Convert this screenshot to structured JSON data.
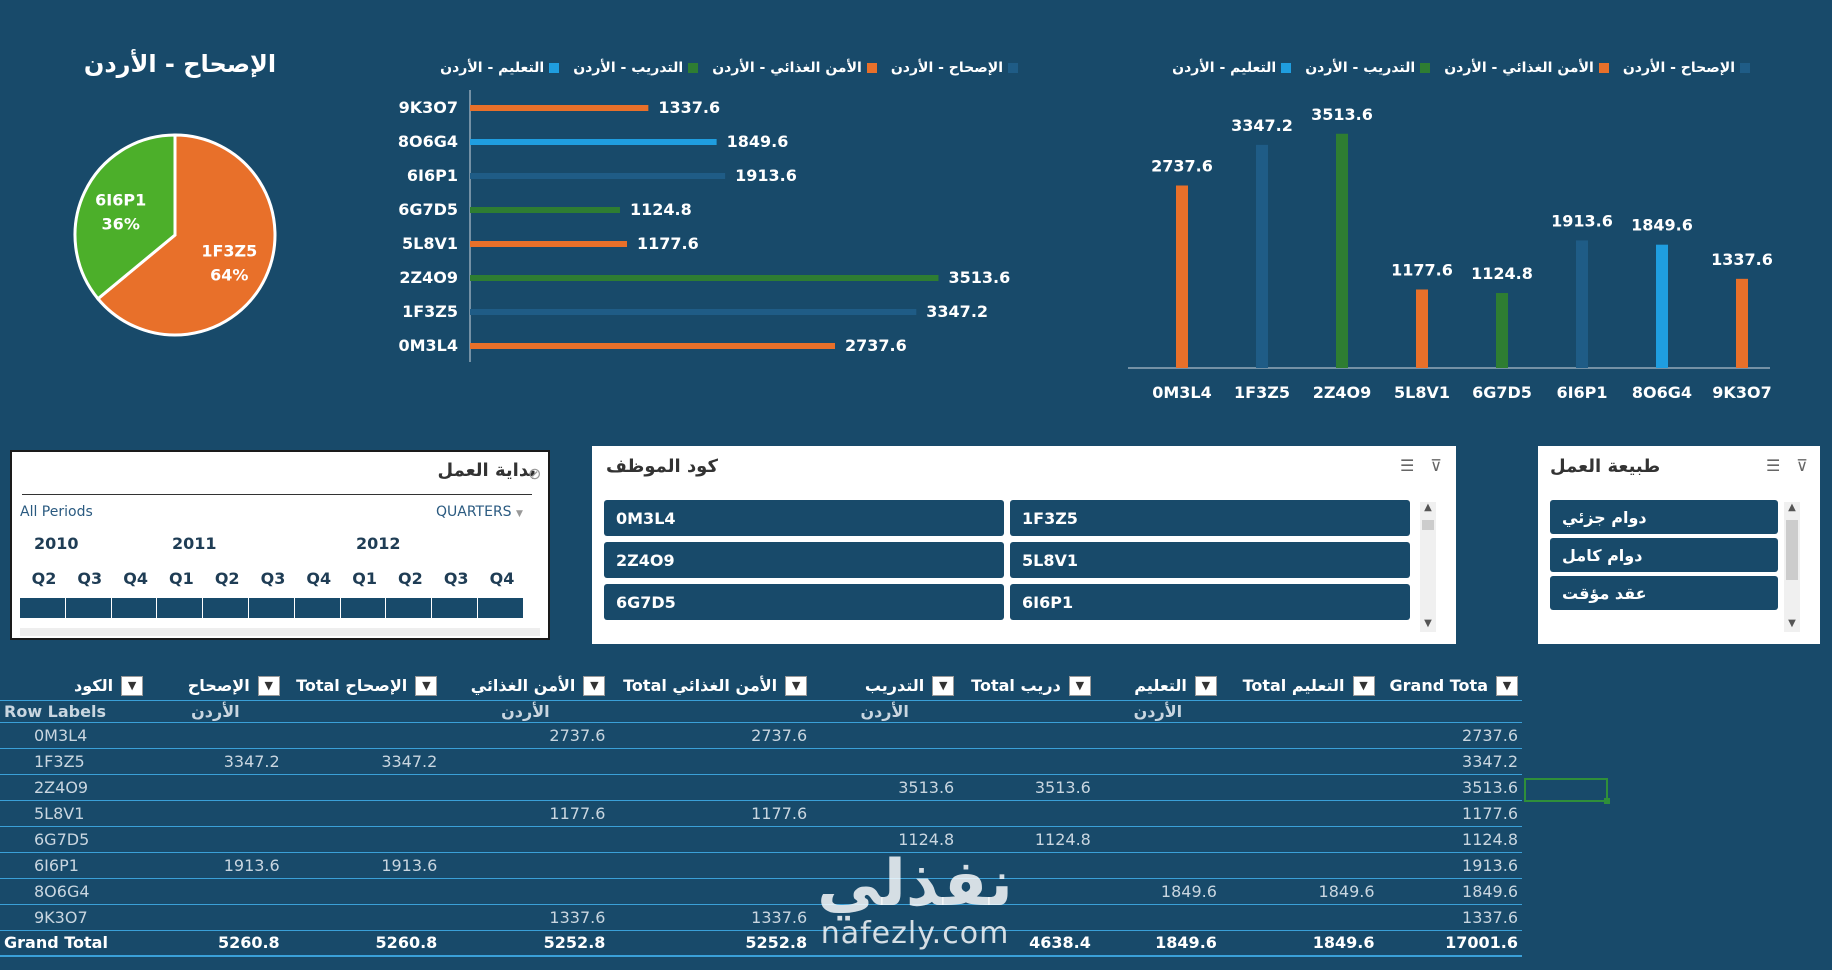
{
  "colors": {
    "bg": "#184a6a",
    "orange": "#e8702a",
    "green": "#2e7d32",
    "blue": "#1f5c86",
    "lightblue": "#1f9ee0",
    "pie_green": "#4caf2a"
  },
  "pie": {
    "title": "الإصحاح - الأردن",
    "slices": [
      {
        "label": "1F3Z5",
        "pct_label": "64%",
        "value": 64,
        "color": "#e8702a"
      },
      {
        "label": "6I6P1",
        "pct_label": "36%",
        "value": 36,
        "color": "#4caf2a"
      }
    ]
  },
  "legend": [
    {
      "label": "الإصحاح - الأردن",
      "color": "#1f5c86"
    },
    {
      "label": "الأمن الغذائي - الأردن",
      "color": "#e8702a"
    },
    {
      "label": "التدريب - الأردن",
      "color": "#2e7d32"
    },
    {
      "label": "التعليم - الأردن",
      "color": "#1f9ee0"
    }
  ],
  "chart_data": [
    {
      "type": "bar",
      "orientation": "horizontal",
      "categories": [
        "9K3O7",
        "8O6G4",
        "6I6P1",
        "6G7D5",
        "5L8V1",
        "2Z4O9",
        "1F3Z5",
        "0M3L4"
      ],
      "values": [
        1337.6,
        1849.6,
        1913.6,
        1124.8,
        1177.6,
        3513.6,
        3347.2,
        2737.6
      ],
      "series_of_value": [
        "الأمن الغذائي - الأردن",
        "التعليم - الأردن",
        "الإصحاح - الأردن",
        "التدريب - الأردن",
        "الأمن الغذائي - الأردن",
        "التدريب - الأردن",
        "الإصحاح - الأردن",
        "الأمن الغذائي - الأردن"
      ],
      "legend": "top"
    },
    {
      "type": "bar",
      "orientation": "vertical",
      "categories": [
        "0M3L4",
        "1F3Z5",
        "2Z4O9",
        "5L8V1",
        "6G7D5",
        "6I6P1",
        "8O6G4",
        "9K3O7"
      ],
      "values": [
        2737.6,
        3347.2,
        3513.6,
        1177.6,
        1124.8,
        1913.6,
        1849.6,
        1337.6
      ],
      "series_of_value": [
        "الأمن الغذائي - الأردن",
        "الإصحاح - الأردن",
        "التدريب - الأردن",
        "الأمن الغذائي - الأردن",
        "التدريب - الأردن",
        "الإصحاح - الأردن",
        "التعليم - الأردن",
        "الأمن الغذائي - الأردن"
      ],
      "legend": "top"
    },
    {
      "type": "pie",
      "title": "الإصحاح - الأردن",
      "categories": [
        "1F3Z5",
        "6I6P1"
      ],
      "values": [
        64,
        36
      ]
    }
  ],
  "timeline": {
    "title": "بداية العمل",
    "all_periods": "All Periods",
    "level": "QUARTERS",
    "years": [
      "2010",
      "2011",
      "2012"
    ],
    "quarters": [
      "Q2",
      "Q3",
      "Q4",
      "Q1",
      "Q2",
      "Q3",
      "Q4",
      "Q1",
      "Q2",
      "Q3",
      "Q4"
    ]
  },
  "slicer_code": {
    "title": "كود الموظف",
    "items": [
      "0M3L4",
      "1F3Z5",
      "2Z4O9",
      "5L8V1",
      "6G7D5",
      "6I6P1"
    ]
  },
  "slicer_type": {
    "title": "طبيعة العمل",
    "items": [
      "دوام جزئي",
      "دوام كامل",
      "عقد مؤقت"
    ]
  },
  "table": {
    "headers": [
      "الكود",
      "الإصحاح",
      "Total الإصحاح",
      "الأمن الغذائي",
      "Total الأمن الغذائي",
      "التدريب",
      "Total التدريب",
      "التعليم",
      "Total التعليم",
      "Grand Total"
    ],
    "header_display": [
      "الكود",
      "الإصحاح",
      "Total الإصحاح",
      "الأمن الغذائي",
      "Total الأمن الغذائي",
      "التدريب",
      "Total دريب",
      "التعليم",
      "Total التعليم",
      "Grand Tota"
    ],
    "subheader": [
      "Row Labels",
      "الأردن",
      "",
      "الأردن",
      "",
      "الأردن",
      "",
      "الأردن",
      "",
      ""
    ],
    "rows": [
      [
        "0M3L4",
        "",
        "",
        "2737.6",
        "2737.6",
        "",
        "",
        "",
        "",
        "2737.6"
      ],
      [
        "1F3Z5",
        "3347.2",
        "3347.2",
        "",
        "",
        "",
        "",
        "",
        "",
        "3347.2"
      ],
      [
        "2Z4O9",
        "",
        "",
        "",
        "",
        "3513.6",
        "3513.6",
        "",
        "",
        "3513.6"
      ],
      [
        "5L8V1",
        "",
        "",
        "1177.6",
        "1177.6",
        "",
        "",
        "",
        "",
        "1177.6"
      ],
      [
        "6G7D5",
        "",
        "",
        "",
        "",
        "1124.8",
        "1124.8",
        "",
        "",
        "1124.8"
      ],
      [
        "6I6P1",
        "1913.6",
        "1913.6",
        "",
        "",
        "",
        "",
        "",
        "",
        "1913.6"
      ],
      [
        "8O6G4",
        "",
        "",
        "",
        "",
        "",
        "",
        "1849.6",
        "1849.6",
        "1849.6"
      ],
      [
        "9K3O7",
        "",
        "",
        "1337.6",
        "1337.6",
        "",
        "",
        "",
        "",
        "1337.6"
      ]
    ],
    "total_row": [
      "Grand Total",
      "5260.8",
      "5260.8",
      "5252.8",
      "5252.8",
      "",
      "4638.4",
      "1849.6",
      "1849.6",
      "17001.6"
    ]
  },
  "watermark": {
    "arabic": "نفذلي",
    "latin": "nafezly.com"
  }
}
